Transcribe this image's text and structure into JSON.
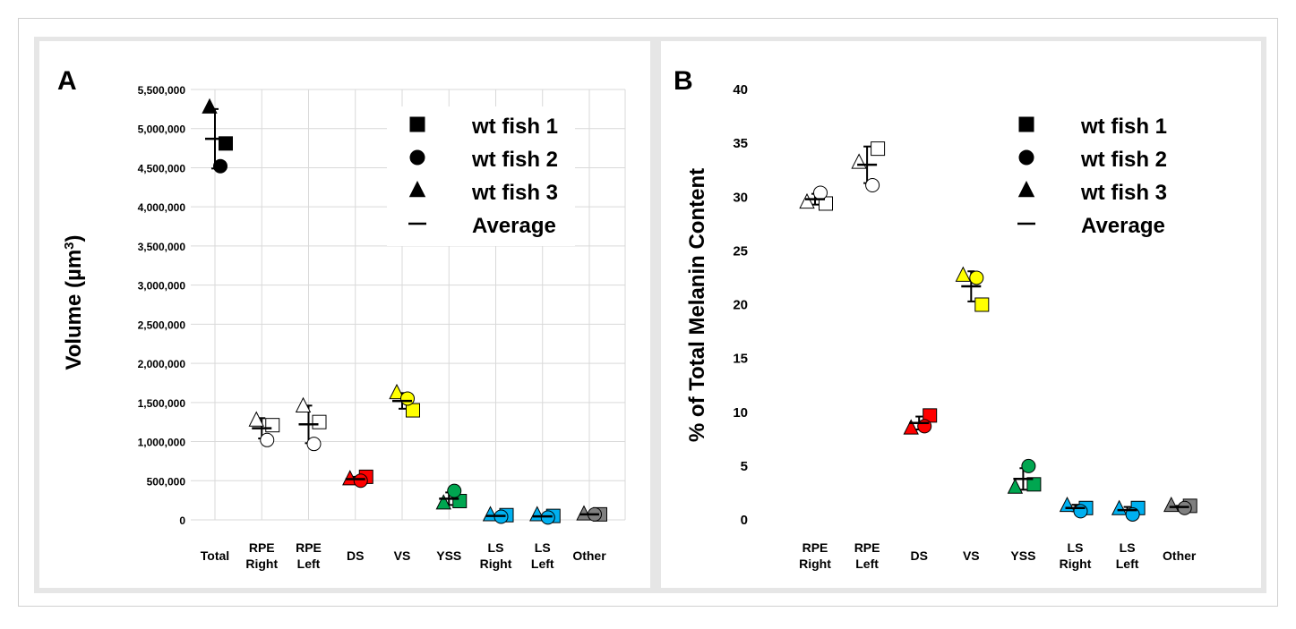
{
  "chart_data": [
    {
      "type": "scatter",
      "panel_label": "A",
      "ylabel_main": "Volume (µm",
      "ylabel_sup": "3",
      "ylabel_close": ")",
      "ylim": [
        0,
        5500000
      ],
      "yticks": [
        {
          "v": 0,
          "label": "0"
        },
        {
          "v": 500000,
          "label": "500,000"
        },
        {
          "v": 1000000,
          "label": "1,000,000"
        },
        {
          "v": 1500000,
          "label": "1,500,000"
        },
        {
          "v": 2000000,
          "label": "2,000,000"
        },
        {
          "v": 2500000,
          "label": "2,500,000"
        },
        {
          "v": 3000000,
          "label": "3,000,000"
        },
        {
          "v": 3500000,
          "label": "3,500,000"
        },
        {
          "v": 4000000,
          "label": "4,000,000"
        },
        {
          "v": 4500000,
          "label": "4,500,000"
        },
        {
          "v": 5000000,
          "label": "5,000,000"
        },
        {
          "v": 5500000,
          "label": "5,500,000"
        }
      ],
      "grid": true,
      "categories": [
        {
          "label": [
            "Total"
          ],
          "color": "#000000"
        },
        {
          "label": [
            "RPE",
            "Right"
          ],
          "color": "#ffffff"
        },
        {
          "label": [
            "RPE",
            "Left"
          ],
          "color": "#ffffff"
        },
        {
          "label": [
            "DS"
          ],
          "color": "#ff0000"
        },
        {
          "label": [
            "VS"
          ],
          "color": "#ffff00"
        },
        {
          "label": [
            "YSS"
          ],
          "color": "#00a650"
        },
        {
          "label": [
            "LS",
            "Right"
          ],
          "color": "#00b0f0"
        },
        {
          "label": [
            "LS",
            "Left"
          ],
          "color": "#00b0f0"
        },
        {
          "label": [
            "Other"
          ],
          "color": "#7f7f7f"
        }
      ],
      "series": [
        {
          "name": "wt fish 1",
          "marker": "square",
          "values": [
            4810000,
            1210000,
            1250000,
            550000,
            1400000,
            240000,
            60000,
            50000,
            70000
          ]
        },
        {
          "name": "wt fish 2",
          "marker": "circle",
          "values": [
            4520000,
            1020000,
            970000,
            500000,
            1550000,
            370000,
            40000,
            30000,
            70000
          ]
        },
        {
          "name": "wt fish 3",
          "marker": "triangle",
          "values": [
            5270000,
            1270000,
            1450000,
            520000,
            1620000,
            210000,
            60000,
            60000,
            70000
          ]
        }
      ],
      "average": {
        "name": "Average",
        "values": [
          4870000,
          1170000,
          1220000,
          520000,
          1520000,
          270000,
          50000,
          45000,
          70000
        ],
        "err": [
          380000,
          130000,
          240000,
          30000,
          100000,
          80000,
          15000,
          15000,
          5000
        ]
      },
      "legend_position": "top-right"
    },
    {
      "type": "scatter",
      "panel_label": "B",
      "ylabel": "% of Total Melanin Content",
      "ylim": [
        0,
        40
      ],
      "yticks": [
        {
          "v": 0,
          "label": "0"
        },
        {
          "v": 5,
          "label": "5"
        },
        {
          "v": 10,
          "label": "10"
        },
        {
          "v": 15,
          "label": "15"
        },
        {
          "v": 20,
          "label": "20"
        },
        {
          "v": 25,
          "label": "25"
        },
        {
          "v": 30,
          "label": "30"
        },
        {
          "v": 35,
          "label": "35"
        },
        {
          "v": 40,
          "label": "40"
        }
      ],
      "grid": false,
      "categories": [
        {
          "label": [
            "RPE",
            "Right"
          ],
          "color": "#ffffff"
        },
        {
          "label": [
            "RPE",
            "Left"
          ],
          "color": "#ffffff"
        },
        {
          "label": [
            "DS"
          ],
          "color": "#ff0000"
        },
        {
          "label": [
            "VS"
          ],
          "color": "#ffff00"
        },
        {
          "label": [
            "YSS"
          ],
          "color": "#00a650"
        },
        {
          "label": [
            "LS",
            "Right"
          ],
          "color": "#00b0f0"
        },
        {
          "label": [
            "LS",
            "Left"
          ],
          "color": "#00b0f0"
        },
        {
          "label": [
            "Other"
          ],
          "color": "#7f7f7f"
        }
      ],
      "series": [
        {
          "name": "wt fish 1",
          "marker": "square",
          "values": [
            29.4,
            34.5,
            9.7,
            20.0,
            3.3,
            1.1,
            1.1,
            1.3
          ]
        },
        {
          "name": "wt fish 2",
          "marker": "circle",
          "values": [
            30.4,
            31.1,
            8.7,
            22.5,
            5.0,
            0.8,
            0.5,
            1.1
          ]
        },
        {
          "name": "wt fish 3",
          "marker": "triangle",
          "values": [
            29.5,
            33.2,
            8.5,
            22.7,
            3.0,
            1.3,
            1.0,
            1.3
          ]
        }
      ],
      "average": {
        "name": "Average",
        "values": [
          29.8,
          33.0,
          9.0,
          21.7,
          3.8,
          1.1,
          0.9,
          1.2
        ],
        "err": [
          0.5,
          1.7,
          0.6,
          1.4,
          1.0,
          0.3,
          0.3,
          0.1
        ]
      },
      "legend_position": "top-right"
    }
  ]
}
